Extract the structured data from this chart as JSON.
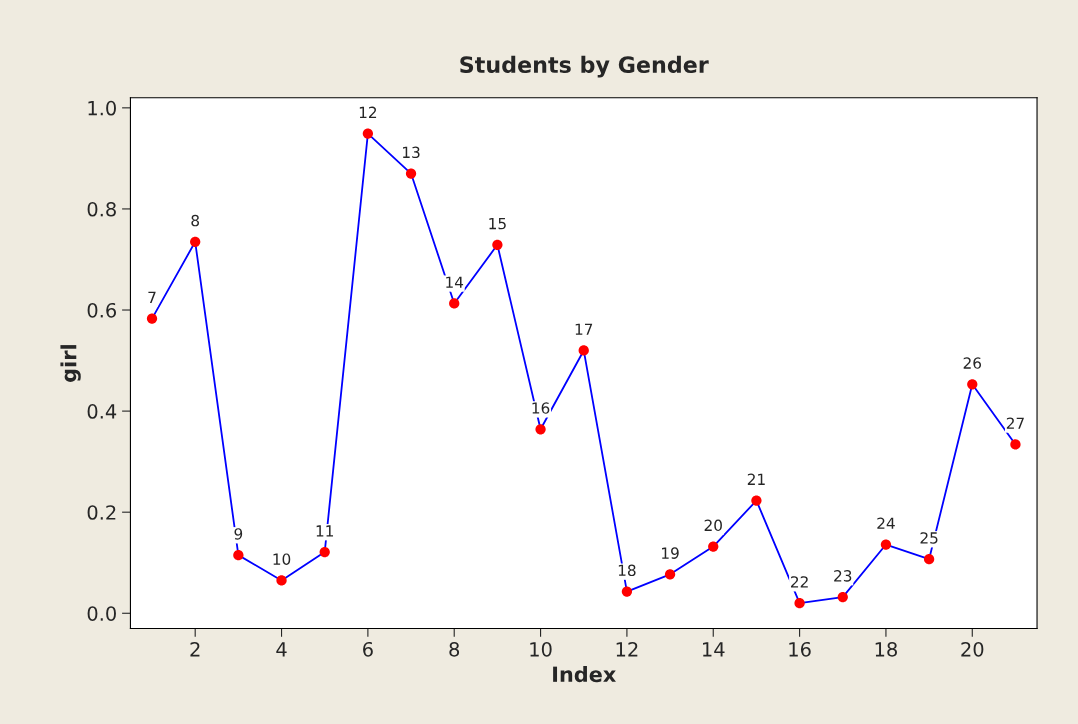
{
  "chart_data": {
    "type": "line",
    "title": "Students by Gender",
    "xlabel": "Index",
    "ylabel": "girl",
    "x": [
      1,
      2,
      3,
      4,
      5,
      6,
      7,
      8,
      9,
      10,
      11,
      12,
      13,
      14,
      15,
      16,
      17,
      18,
      19,
      20,
      21
    ],
    "series": [
      {
        "color": "#0000ff",
        "colors": [
          "#ff0000",
          "#ff0000",
          "#ff0000",
          "#ff0000",
          "#ff0000",
          "#ff0000",
          "#ff0000",
          "#ff0000",
          "#ff0000",
          "#ff0000",
          "#ff0000",
          "#ff0000",
          "#ff0000",
          "#ff0000",
          "#ff0000",
          "#ff0000",
          "#ff0000",
          "#ff0000",
          "#ff0000",
          "#ff0000",
          "#ff0000"
        ],
        "values": [
          0.583,
          0.735,
          0.115,
          0.065,
          0.121,
          0.949,
          0.87,
          0.613,
          0.729,
          0.364,
          0.52,
          0.043,
          0.077,
          0.132,
          0.223,
          0.02,
          0.032,
          0.136,
          0.107,
          0.453,
          0.334
        ]
      }
    ],
    "marker": "circle",
    "line_style": "solid",
    "xlim": [
      0.5,
      21.5
    ],
    "xticks": [
      2,
      4,
      6,
      8,
      10,
      12,
      14,
      16,
      18,
      20
    ],
    "ylim": [
      -0.03,
      1.02
    ],
    "yticks": [
      {
        "value": 0,
        "label": "0.0"
      },
      {
        "value": 0.2,
        "label": "0.2"
      },
      {
        "value": 0.4,
        "label": "0.4"
      },
      {
        "value": 0.6,
        "label": "0.6"
      },
      {
        "value": 0.8,
        "label": "0.8"
      },
      {
        "value": 1,
        "label": "1.0"
      }
    ],
    "grid": false,
    "legend": false,
    "annotations": [
      {
        "text": "7",
        "x": 1,
        "y": 0.583
      },
      {
        "text": "8",
        "x": 2,
        "y": 0.735
      },
      {
        "text": "9",
        "x": 3,
        "y": 0.115
      },
      {
        "text": "10",
        "x": 4,
        "y": 0.065
      },
      {
        "text": "11",
        "x": 5,
        "y": 0.121
      },
      {
        "text": "12",
        "x": 6,
        "y": 0.949
      },
      {
        "text": "13",
        "x": 7,
        "y": 0.87
      },
      {
        "text": "14",
        "x": 8,
        "y": 0.613
      },
      {
        "text": "15",
        "x": 9,
        "y": 0.729
      },
      {
        "text": "16",
        "x": 10,
        "y": 0.364
      },
      {
        "text": "17",
        "x": 11,
        "y": 0.52
      },
      {
        "text": "18",
        "x": 12,
        "y": 0.043
      },
      {
        "text": "19",
        "x": 13,
        "y": 0.077
      },
      {
        "text": "20",
        "x": 14,
        "y": 0.132
      },
      {
        "text": "21",
        "x": 15,
        "y": 0.223
      },
      {
        "text": "22",
        "x": 16,
        "y": 0.02
      },
      {
        "text": "23",
        "x": 17,
        "y": 0.032
      },
      {
        "text": "24",
        "x": 18,
        "y": 0.136
      },
      {
        "text": "25",
        "x": 19,
        "y": 0.107
      },
      {
        "text": "26",
        "x": 20,
        "y": 0.453
      },
      {
        "text": "27",
        "x": 21,
        "y": 0.334
      }
    ]
  }
}
